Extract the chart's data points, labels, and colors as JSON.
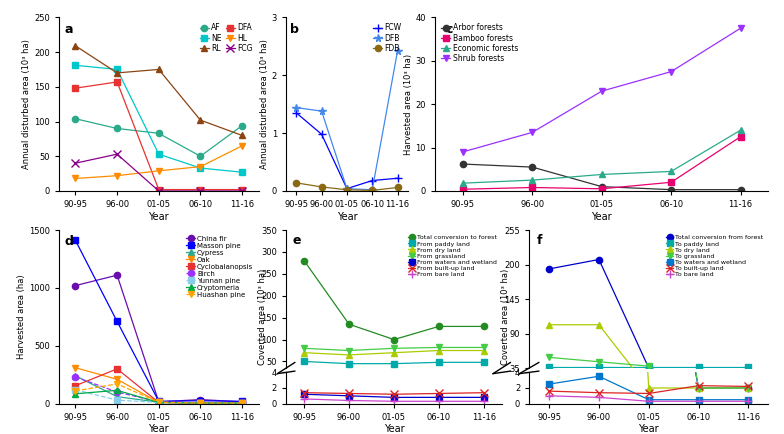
{
  "x_labels": [
    "90-95",
    "96-00",
    "01-05",
    "06-10",
    "11-16"
  ],
  "panel_a": {
    "title": "a",
    "ylabel": "Annual disturbed area (10³ ha)",
    "ylim": [
      0,
      250
    ],
    "yticks": [
      0,
      50,
      100,
      150,
      200,
      250
    ],
    "series": {
      "AF": {
        "values": [
          104,
          90,
          83,
          50,
          94
        ],
        "color": "#2aaa8a",
        "marker": "o",
        "linestyle": "-"
      },
      "NE": {
        "values": [
          181,
          175,
          53,
          33,
          27
        ],
        "color": "#00c8c8",
        "marker": "s",
        "linestyle": "-"
      },
      "RL": {
        "values": [
          209,
          170,
          175,
          102,
          80
        ],
        "color": "#8B4513",
        "marker": "^",
        "linestyle": "-"
      },
      "DFA": {
        "values": [
          148,
          157,
          2,
          2,
          2
        ],
        "color": "#e83232",
        "marker": "s",
        "linestyle": "-"
      },
      "HL": {
        "values": [
          18,
          22,
          29,
          35,
          65
        ],
        "color": "#ff8c00",
        "marker": "v",
        "linestyle": "-"
      },
      "FCG": {
        "values": [
          40,
          53,
          0,
          0,
          0
        ],
        "color": "#8b008b",
        "marker": "x",
        "linestyle": "-"
      }
    },
    "legend_ncol": 2
  },
  "panel_b": {
    "title": "b",
    "ylabel": "Annual disturbed area (10³ ha)",
    "ylim": [
      0,
      3
    ],
    "yticks": [
      0,
      1,
      2,
      3
    ],
    "series": {
      "FCW": {
        "values": [
          1.35,
          0.98,
          0.04,
          0.18,
          0.22
        ],
        "color": "#0000ff",
        "marker": "+",
        "linestyle": "-"
      },
      "DFB": {
        "values": [
          1.44,
          1.38,
          0.04,
          0.02,
          2.42
        ],
        "color": "#4488ee",
        "marker": "*",
        "linestyle": "-"
      },
      "FDB": {
        "values": [
          0.14,
          0.07,
          0.02,
          0.01,
          0.06
        ],
        "color": "#8B6914",
        "marker": "o",
        "linestyle": "-"
      }
    }
  },
  "panel_c": {
    "title": "c",
    "ylabel": "Harvested area (10³ ha)",
    "ylim": [
      0,
      40
    ],
    "yticks": [
      0,
      10,
      20,
      30,
      40
    ],
    "series": {
      "Arbor forests": {
        "values": [
          6.2,
          5.5,
          1.0,
          0.3,
          0.3
        ],
        "color": "#333333",
        "marker": "o",
        "linestyle": "-"
      },
      "Bamboo forests": {
        "values": [
          0.4,
          0.8,
          0.5,
          2.0,
          12.5
        ],
        "color": "#e8006e",
        "marker": "s",
        "linestyle": "-"
      },
      "Economic forests": {
        "values": [
          1.8,
          2.5,
          3.8,
          4.5,
          14.0
        ],
        "color": "#2aaa8a",
        "marker": "^",
        "linestyle": "-"
      },
      "Shrub forests": {
        "values": [
          9.0,
          13.5,
          23.0,
          27.5,
          37.5
        ],
        "color": "#9b30ff",
        "marker": "v",
        "linestyle": "-"
      }
    }
  },
  "panel_d": {
    "title": "d",
    "ylabel": "Harvested area (ha)",
    "ylim": [
      0,
      1500
    ],
    "yticks": [
      0,
      500,
      1000,
      1500
    ],
    "series": {
      "China fir": {
        "values": [
          1020,
          1110,
          15,
          35,
          15
        ],
        "color": "#6a0dad",
        "marker": "o",
        "linestyle": "-"
      },
      "Masson pine": {
        "values": [
          1410,
          710,
          20,
          25,
          20
        ],
        "color": "#0000ff",
        "marker": "s",
        "linestyle": "-"
      },
      "Cypress": {
        "values": [
          240,
          60,
          12,
          5,
          5
        ],
        "color": "#2aaa8a",
        "marker": "^",
        "linestyle": "-"
      },
      "Oak": {
        "values": [
          310,
          210,
          10,
          5,
          5
        ],
        "color": "#ff8c00",
        "marker": "v",
        "linestyle": "-"
      },
      "Cyclobalanopsis": {
        "values": [
          155,
          300,
          10,
          5,
          5
        ],
        "color": "#e83232",
        "marker": "s",
        "linestyle": "-"
      },
      "Birch": {
        "values": [
          230,
          100,
          15,
          5,
          5
        ],
        "color": "#9b30ff",
        "marker": "o",
        "linestyle": "--"
      },
      "Yunnan pine": {
        "values": [
          120,
          30,
          10,
          5,
          5
        ],
        "color": "#87ceeb",
        "marker": "s",
        "linestyle": "--"
      },
      "Cryptomeria": {
        "values": [
          85,
          115,
          10,
          5,
          5
        ],
        "color": "#00aa44",
        "marker": "^",
        "linestyle": "-"
      },
      "Huashan pine": {
        "values": [
          110,
          170,
          12,
          5,
          5
        ],
        "color": "#ffa500",
        "marker": "v",
        "linestyle": "--"
      }
    }
  },
  "panel_e": {
    "title": "e",
    "ylabel": "Coverted area (10³ ha)",
    "ylim_lower": [
      0,
      4
    ],
    "ylim_upper": [
      35,
      350
    ],
    "yticks_lower": [
      0,
      2,
      4
    ],
    "yticks_upper": [
      35,
      50,
      100,
      150,
      200,
      250,
      300,
      350
    ],
    "series": {
      "Total conversion to forest": {
        "values": [
          280,
          135,
          100,
          130,
          130
        ],
        "color": "#228B22",
        "marker": "o",
        "linestyle": "-"
      },
      "From paddy land": {
        "values": [
          50,
          45,
          45,
          48,
          48
        ],
        "color": "#00aaaa",
        "marker": "s",
        "linestyle": "-"
      },
      "From dry land": {
        "values": [
          70,
          65,
          70,
          75,
          75
        ],
        "color": "#aacc00",
        "marker": "^",
        "linestyle": "-"
      },
      "From grassland": {
        "values": [
          80,
          75,
          80,
          82,
          82
        ],
        "color": "#44cc44",
        "marker": "v",
        "linestyle": "-"
      },
      "From waters and wetland": {
        "values": [
          1.2,
          1.0,
          0.8,
          0.8,
          0.8
        ],
        "color": "#0000cc",
        "marker": "s",
        "linestyle": "-"
      },
      "From built-up land": {
        "values": [
          1.4,
          1.3,
          1.2,
          1.3,
          1.4
        ],
        "color": "#dd2222",
        "marker": "x",
        "linestyle": "-"
      },
      "From bare land": {
        "values": [
          0.6,
          0.4,
          0.3,
          0.3,
          0.3
        ],
        "color": "#cc44cc",
        "marker": "+",
        "linestyle": "-"
      }
    }
  },
  "panel_f": {
    "title": "f",
    "ylabel": "Coverted area (10³ ha)",
    "ylim_lower": [
      0,
      4
    ],
    "ylim_upper": [
      35,
      255
    ],
    "yticks_lower": [
      0,
      2,
      4
    ],
    "yticks_upper": [
      35,
      50,
      90,
      145,
      200,
      255
    ],
    "series": {
      "Total conversion from forest": {
        "values": [
          193,
          208,
          35,
          2,
          2
        ],
        "color": "#0000cc",
        "marker": "o",
        "linestyle": "-"
      },
      "To paddy land": {
        "values": [
          36,
          36,
          36,
          36,
          36
        ],
        "color": "#00aaaa",
        "marker": "s",
        "linestyle": "-"
      },
      "To dry land": {
        "values": [
          104,
          104,
          2,
          2,
          2
        ],
        "color": "#aacc00",
        "marker": "^",
        "linestyle": "-"
      },
      "To grassland": {
        "values": [
          52,
          45,
          38,
          2,
          2
        ],
        "color": "#44cc44",
        "marker": "v",
        "linestyle": "-"
      },
      "To waters and wetland": {
        "values": [
          2.5,
          3.5,
          0.5,
          0.5,
          0.5
        ],
        "color": "#0077cc",
        "marker": "s",
        "linestyle": "-"
      },
      "To built-up land": {
        "values": [
          1.6,
          1.4,
          1.3,
          2.3,
          2.2
        ],
        "color": "#dd2222",
        "marker": "x",
        "linestyle": "-"
      },
      "To bare land": {
        "values": [
          1.0,
          0.8,
          0.3,
          0.3,
          0.3
        ],
        "color": "#cc44cc",
        "marker": "+",
        "linestyle": "-"
      }
    }
  }
}
